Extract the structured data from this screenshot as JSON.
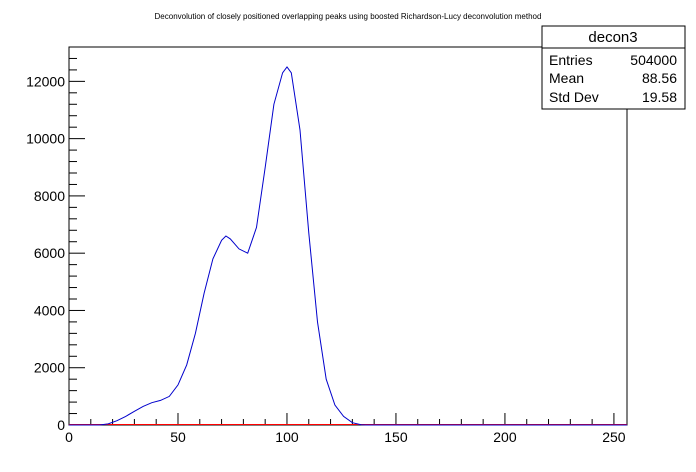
{
  "chart_data": {
    "type": "line",
    "title": "Deconvolution of closely positioned overlapping peaks using boosted Richardson-Lucy deconvolution method",
    "xlabel": "",
    "ylabel": "",
    "xlim": [
      0,
      256
    ],
    "ylim": [
      0,
      13200
    ],
    "x_ticks": [
      0,
      50,
      100,
      150,
      200,
      250
    ],
    "y_ticks": [
      0,
      2000,
      4000,
      6000,
      8000,
      10000,
      12000
    ],
    "grid": false,
    "line_color": "#0000cc",
    "baseline_color": "#ff0000",
    "series": [
      {
        "x": [
          0,
          14,
          18,
          22,
          26,
          30,
          34,
          38,
          42,
          46,
          50,
          54,
          58,
          62,
          66,
          70,
          72,
          74,
          78,
          82,
          86,
          90,
          94,
          98,
          100,
          102,
          106,
          110,
          114,
          118,
          122,
          126,
          130,
          134,
          136,
          140,
          256
        ],
        "y": [
          0,
          0,
          40,
          150,
          300,
          480,
          650,
          780,
          860,
          1000,
          1400,
          2100,
          3200,
          4600,
          5800,
          6450,
          6600,
          6500,
          6150,
          6000,
          6900,
          9000,
          11200,
          12300,
          12500,
          12300,
          10300,
          6700,
          3600,
          1600,
          700,
          300,
          80,
          10,
          0,
          0,
          0
        ]
      }
    ],
    "stats_box": {
      "name": "decon3",
      "rows": [
        {
          "label": "Entries",
          "value": "504000"
        },
        {
          "label": "Mean",
          "value": "88.56"
        },
        {
          "label": "Std Dev",
          "value": "19.58"
        }
      ]
    }
  }
}
